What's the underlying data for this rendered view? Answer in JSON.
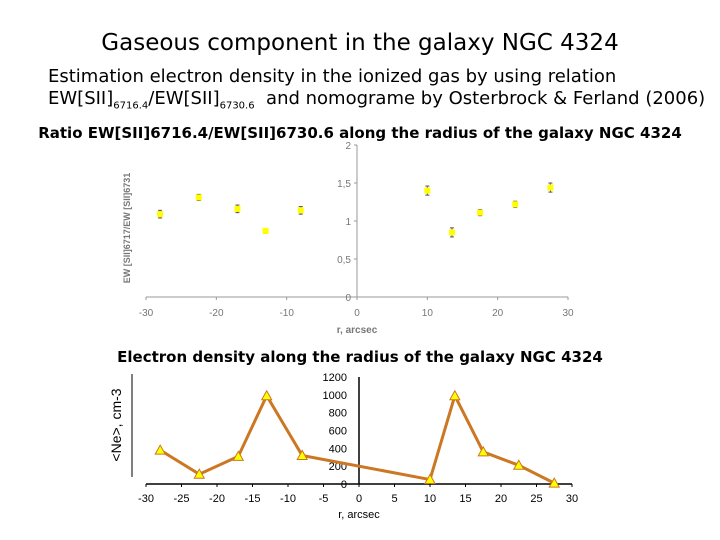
{
  "slide": {
    "title": "Gaseous component in the galaxy NGC 4324",
    "intro_line1": "Estimation electron density in the ionized gas by using relation",
    "intro_ew1": "EW[SII]",
    "intro_sub1": "6716.4",
    "intro_ew2": "/EW[SII]",
    "intro_sub2": "6730.6",
    "intro_tail": "  and nomograme by Osterbrock & Ferland (2006)"
  },
  "chart_data": [
    {
      "type": "scatter",
      "title": "Ratio EW[SII]6716.4/EW[SII]6730.6 along the radius of the galaxy NGC 4324",
      "xlabel": "r, arcsec",
      "ylabel": "EW [SII]6717/EW [SII]6731",
      "xlim": [
        -30,
        30
      ],
      "ylim": [
        0,
        2
      ],
      "xticks": [
        -30,
        -20,
        -10,
        0,
        10,
        20,
        30
      ],
      "yticks": [
        "0",
        "0,5",
        "1",
        "1,5",
        "2"
      ],
      "grid": false,
      "marker_color": "#ffff00",
      "points": [
        {
          "x": -28,
          "y": 1.09,
          "err": 0.05
        },
        {
          "x": -22.5,
          "y": 1.31,
          "err": 0.04
        },
        {
          "x": -17,
          "y": 1.16,
          "err": 0.05
        },
        {
          "x": -13,
          "y": 0.87,
          "err": 0.03
        },
        {
          "x": -8,
          "y": 1.14,
          "err": 0.05
        },
        {
          "x": 10,
          "y": 1.4,
          "err": 0.06
        },
        {
          "x": 13.5,
          "y": 0.85,
          "err": 0.06
        },
        {
          "x": 17.5,
          "y": 1.11,
          "err": 0.04
        },
        {
          "x": 22.5,
          "y": 1.22,
          "err": 0.04
        },
        {
          "x": 27.5,
          "y": 1.44,
          "err": 0.06
        }
      ]
    },
    {
      "type": "line",
      "title": "Electron density along the radius of the galaxy NGC 4324",
      "xlabel": "r, arcsec",
      "ylabel": "<Ne>, cm-3",
      "xlim": [
        -30,
        30
      ],
      "ylim": [
        0,
        1200
      ],
      "xticks": [
        -30,
        -25,
        -20,
        -15,
        -10,
        -5,
        0,
        5,
        10,
        15,
        20,
        25,
        30
      ],
      "yticks": [
        0,
        200,
        400,
        600,
        800,
        1000,
        1200
      ],
      "grid": false,
      "line_color": "#cc7722",
      "marker_color": "#ffff00",
      "x": [
        -28,
        -22.5,
        -17,
        -13,
        -8,
        10,
        13.5,
        17.5,
        22.5,
        27.5
      ],
      "y": [
        380,
        110,
        310,
        990,
        320,
        50,
        990,
        360,
        210,
        10
      ]
    }
  ]
}
